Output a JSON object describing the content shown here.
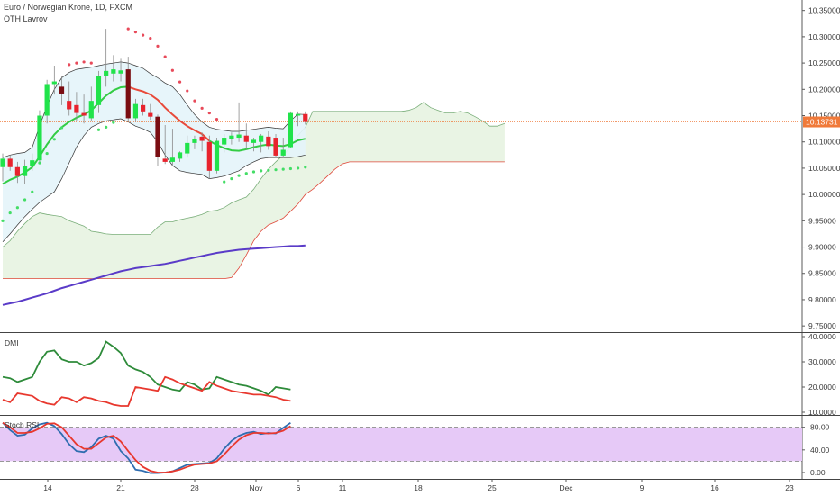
{
  "header": {
    "symbol_title": "Euro / Norwegian Krone, 1D, FXCM",
    "indicator_label": "OTH Lavrov"
  },
  "colors": {
    "up_candle": "#21e34b",
    "down_candle": "#e8232e",
    "dark_down_candle": "#7a0d12",
    "ema_line": "#33cc44",
    "red_line": "#e84a3a",
    "purple_line": "#5a3bc8",
    "band_fill": "#e4f4fa",
    "cloud_fill": "#e9f4e4",
    "psar": "#e84a5a",
    "dmi_plus": "#2e8b3a",
    "dmi_minus": "#e8382e",
    "stoch_k": "#2f6db0",
    "stoch_d": "#e8382e",
    "stoch_band": "#e6c9f7",
    "price_tag": "#f07a3a"
  },
  "chart_data": [
    {
      "type": "candlestick",
      "title": "Euro / Norwegian Krone, 1D, FXCM",
      "ylim": [
        9.74,
        10.37
      ],
      "yticks": [
        "10.35000",
        "10.30000",
        "10.25000",
        "10.20000",
        "10.15000",
        "10.10000",
        "10.05000",
        "10.00000",
        "9.95000",
        "9.90000",
        "9.85000",
        "9.80000",
        "9.75000"
      ],
      "current_price_label": "10.13731",
      "xticks": [
        "14",
        "21",
        "28",
        "Nov",
        "6",
        "11",
        "18",
        "25",
        "Dec",
        "9",
        "16",
        "23"
      ],
      "candles": [
        {
          "o": 10.052,
          "h": 10.078,
          "l": 10.025,
          "c": 10.068
        },
        {
          "o": 10.068,
          "h": 10.075,
          "l": 10.045,
          "c": 10.052
        },
        {
          "o": 10.052,
          "h": 10.062,
          "l": 10.022,
          "c": 10.035
        },
        {
          "o": 10.035,
          "h": 10.066,
          "l": 10.02,
          "c": 10.055
        },
        {
          "o": 10.055,
          "h": 10.078,
          "l": 10.045,
          "c": 10.065
        },
        {
          "o": 10.065,
          "h": 10.16,
          "l": 10.06,
          "c": 10.15
        },
        {
          "o": 10.15,
          "h": 10.218,
          "l": 10.135,
          "c": 10.21
        },
        {
          "o": 10.21,
          "h": 10.245,
          "l": 10.19,
          "c": 10.215
        },
        {
          "o": 10.205,
          "h": 10.225,
          "l": 10.17,
          "c": 10.192,
          "dark": true
        },
        {
          "o": 10.178,
          "h": 10.215,
          "l": 10.15,
          "c": 10.162
        },
        {
          "o": 10.17,
          "h": 10.195,
          "l": 10.14,
          "c": 10.155
        },
        {
          "o": 10.155,
          "h": 10.19,
          "l": 10.135,
          "c": 10.15
        },
        {
          "o": 10.145,
          "h": 10.205,
          "l": 10.14,
          "c": 10.178
        },
        {
          "o": 10.17,
          "h": 10.235,
          "l": 10.155,
          "c": 10.225
        },
        {
          "o": 10.225,
          "h": 10.315,
          "l": 10.205,
          "c": 10.235
        },
        {
          "o": 10.23,
          "h": 10.265,
          "l": 10.215,
          "c": 10.238
        },
        {
          "o": 10.23,
          "h": 10.258,
          "l": 10.215,
          "c": 10.236
        },
        {
          "o": 10.238,
          "h": 10.262,
          "l": 10.14,
          "c": 10.145,
          "dark": true
        },
        {
          "o": 10.145,
          "h": 10.182,
          "l": 10.138,
          "c": 10.172
        },
        {
          "o": 10.17,
          "h": 10.182,
          "l": 10.15,
          "c": 10.158
        },
        {
          "o": 10.155,
          "h": 10.172,
          "l": 10.142,
          "c": 10.148
        },
        {
          "o": 10.148,
          "h": 10.152,
          "l": 10.055,
          "c": 10.072,
          "dark": true
        },
        {
          "o": 10.068,
          "h": 10.132,
          "l": 10.058,
          "c": 10.062
        },
        {
          "o": 10.062,
          "h": 10.125,
          "l": 10.055,
          "c": 10.07
        },
        {
          "o": 10.068,
          "h": 10.082,
          "l": 10.062,
          "c": 10.08
        },
        {
          "o": 10.078,
          "h": 10.112,
          "l": 10.07,
          "c": 10.098
        },
        {
          "o": 10.098,
          "h": 10.112,
          "l": 10.086,
          "c": 10.105
        },
        {
          "o": 10.11,
          "h": 10.118,
          "l": 10.082,
          "c": 10.102
        },
        {
          "o": 10.1,
          "h": 10.112,
          "l": 10.03,
          "c": 10.045
        },
        {
          "o": 10.045,
          "h": 10.108,
          "l": 10.04,
          "c": 10.102
        },
        {
          "o": 10.095,
          "h": 10.115,
          "l": 10.08,
          "c": 10.108
        },
        {
          "o": 10.105,
          "h": 10.118,
          "l": 10.095,
          "c": 10.112
        },
        {
          "o": 10.108,
          "h": 10.175,
          "l": 10.1,
          "c": 10.114
        },
        {
          "o": 10.112,
          "h": 10.135,
          "l": 10.085,
          "c": 10.1
        },
        {
          "o": 10.098,
          "h": 10.108,
          "l": 10.082,
          "c": 10.104
        },
        {
          "o": 10.1,
          "h": 10.115,
          "l": 10.08,
          "c": 10.112
        },
        {
          "o": 10.11,
          "h": 10.12,
          "l": 10.085,
          "c": 10.092
        },
        {
          "o": 10.108,
          "h": 10.115,
          "l": 10.07,
          "c": 10.074
        },
        {
          "o": 10.074,
          "h": 10.108,
          "l": 10.07,
          "c": 10.085
        },
        {
          "o": 10.09,
          "h": 10.158,
          "l": 10.088,
          "c": 10.155
        },
        {
          "o": 10.15,
          "h": 10.158,
          "l": 10.13,
          "c": 10.153
        },
        {
          "o": 10.153,
          "h": 10.158,
          "l": 10.133,
          "c": 10.138
        }
      ],
      "ema": [
        10.02,
        10.028,
        10.034,
        10.042,
        10.052,
        10.072,
        10.095,
        10.114,
        10.128,
        10.138,
        10.146,
        10.152,
        10.16,
        10.174,
        10.188,
        10.198,
        10.204,
        10.205,
        10.2,
        10.196,
        10.19,
        10.18,
        10.165,
        10.152,
        10.14,
        10.13,
        10.122,
        10.115,
        10.102,
        10.094,
        10.088,
        10.084,
        10.083,
        10.086,
        10.09,
        10.093,
        10.095,
        10.093,
        10.092,
        10.096,
        10.103,
        10.106
      ],
      "band_upper": [
        10.07,
        10.075,
        10.078,
        10.08,
        10.09,
        10.13,
        10.168,
        10.2,
        10.222,
        10.232,
        10.238,
        10.24,
        10.242,
        10.245,
        10.248,
        10.25,
        10.252,
        10.25,
        10.245,
        10.24,
        10.23,
        10.222,
        10.212,
        10.205,
        10.19,
        10.17,
        10.152,
        10.138,
        10.128,
        10.124,
        10.122,
        10.12,
        10.12,
        10.122,
        10.124,
        10.126,
        10.128,
        10.126,
        10.125,
        10.14,
        10.153,
        10.152
      ],
      "band_lower": [
        9.91,
        9.925,
        9.942,
        9.958,
        9.972,
        9.985,
        9.995,
        10.005,
        10.03,
        10.06,
        10.09,
        10.112,
        10.128,
        10.135,
        10.14,
        10.142,
        10.144,
        10.138,
        10.13,
        10.125,
        10.118,
        10.1,
        10.075,
        10.055,
        10.045,
        10.042,
        10.04,
        10.038,
        10.03,
        10.032,
        10.035,
        10.04,
        10.045,
        10.055,
        10.062,
        10.068,
        10.07,
        10.07,
        10.07,
        10.07,
        10.072,
        10.075
      ],
      "cloud_upper": [
        9.9,
        9.912,
        9.93,
        9.945,
        9.958,
        9.965,
        9.962,
        9.96,
        9.958,
        9.95,
        9.945,
        9.94,
        9.93,
        9.928,
        9.925,
        9.924,
        9.924,
        9.924,
        9.924,
        9.924,
        9.924,
        9.938,
        9.948,
        9.948,
        9.952,
        9.955,
        9.958,
        9.962,
        9.968,
        9.97,
        9.975,
        9.984,
        9.99,
        9.995,
        10.01,
        10.03,
        10.048,
        10.062,
        10.075,
        10.09,
        10.112,
        10.128,
        10.158,
        10.158,
        10.158,
        10.158,
        10.158,
        10.158,
        10.158,
        10.158,
        10.158,
        10.158,
        10.158,
        10.158,
        10.158,
        10.16,
        10.165,
        10.175,
        10.165,
        10.16,
        10.155,
        10.155,
        10.158,
        10.155,
        10.148,
        10.14,
        10.13,
        10.13,
        10.135
      ],
      "cloud_lower": [
        9.84,
        9.84,
        9.84,
        9.84,
        9.84,
        9.84,
        9.84,
        9.84,
        9.84,
        9.84,
        9.84,
        9.84,
        9.84,
        9.84,
        9.84,
        9.84,
        9.84,
        9.84,
        9.84,
        9.84,
        9.84,
        9.84,
        9.84,
        9.84,
        9.84,
        9.84,
        9.84,
        9.84,
        9.84,
        9.84,
        9.84,
        9.842,
        9.86,
        9.885,
        9.912,
        9.93,
        9.942,
        9.948,
        9.955,
        9.968,
        9.982,
        10.0,
        10.01,
        10.022,
        10.035,
        10.048,
        10.058,
        10.062,
        10.062,
        10.062,
        10.062,
        10.062,
        10.062,
        10.062,
        10.062,
        10.062,
        10.062,
        10.062,
        10.062,
        10.062,
        10.062,
        10.062,
        10.062,
        10.062,
        10.062,
        10.062,
        10.062,
        10.062,
        10.062
      ],
      "purple_line": [
        9.79,
        9.793,
        9.796,
        9.8,
        9.804,
        9.808,
        9.812,
        9.817,
        9.822,
        9.826,
        9.83,
        9.834,
        9.838,
        9.842,
        9.846,
        9.85,
        9.854,
        9.857,
        9.86,
        9.862,
        9.864,
        9.866,
        9.868,
        9.871,
        9.874,
        9.877,
        9.88,
        9.883,
        9.886,
        9.889,
        9.891,
        9.893,
        9.895,
        9.896,
        9.897,
        9.898,
        9.899,
        9.9,
        9.901,
        9.902,
        9.902,
        9.903
      ],
      "psar": [
        {
          "i": 0,
          "v": 9.95
        },
        {
          "i": 1,
          "v": 9.965
        },
        {
          "i": 2,
          "v": 9.975
        },
        {
          "i": 3,
          "v": 9.99
        },
        {
          "i": 4,
          "v": 10.005
        },
        {
          "i": 5,
          "v": 10.06
        },
        {
          "i": 6,
          "v": 10.078
        },
        {
          "i": 7,
          "v": 10.105
        },
        {
          "i": 8,
          "v": 10.127
        },
        {
          "i": 9,
          "v": 10.247
        },
        {
          "i": 10,
          "v": 10.25
        },
        {
          "i": 11,
          "v": 10.252
        },
        {
          "i": 12,
          "v": 10.25
        },
        {
          "i": 13,
          "v": 10.123
        },
        {
          "i": 14,
          "v": 10.128
        },
        {
          "i": 15,
          "v": 10.137
        },
        {
          "i": 17,
          "v": 10.315
        },
        {
          "i": 18,
          "v": 10.309
        },
        {
          "i": 19,
          "v": 10.303
        },
        {
          "i": 20,
          "v": 10.297
        },
        {
          "i": 21,
          "v": 10.282
        },
        {
          "i": 22,
          "v": 10.262
        },
        {
          "i": 23,
          "v": 10.236
        },
        {
          "i": 24,
          "v": 10.214
        },
        {
          "i": 25,
          "v": 10.197
        },
        {
          "i": 26,
          "v": 10.178
        },
        {
          "i": 27,
          "v": 10.164
        },
        {
          "i": 28,
          "v": 10.155
        },
        {
          "i": 29,
          "v": 10.143
        },
        {
          "i": 30,
          "v": 10.024
        },
        {
          "i": 31,
          "v": 10.03
        },
        {
          "i": 32,
          "v": 10.036
        },
        {
          "i": 33,
          "v": 10.04
        },
        {
          "i": 34,
          "v": 10.043
        },
        {
          "i": 35,
          "v": 10.045
        },
        {
          "i": 36,
          "v": 10.046
        },
        {
          "i": 37,
          "v": 10.047
        },
        {
          "i": 38,
          "v": 10.048
        },
        {
          "i": 39,
          "v": 10.049
        },
        {
          "i": 40,
          "v": 10.05
        },
        {
          "i": 41,
          "v": 10.052
        }
      ]
    },
    {
      "type": "line",
      "title": "DMI",
      "ylim": [
        10,
        40
      ],
      "yticks": [
        "40.0000",
        "30.0000",
        "20.0000",
        "10.0000"
      ],
      "series": [
        {
          "values": [
            24,
            23.5,
            22,
            23,
            24,
            30,
            34,
            34.5,
            31,
            30,
            30,
            28.5,
            29.5,
            31.5,
            38,
            36,
            33.5,
            28.5,
            27,
            26,
            24,
            21,
            20,
            19,
            18.5,
            22,
            21,
            19,
            19.5,
            24,
            23,
            22,
            21,
            20.5,
            19.5,
            18.5,
            17,
            20,
            19.5,
            19
          ]
        },
        {
          "values": [
            15,
            14,
            17.5,
            17,
            16.5,
            14.5,
            13.5,
            13,
            16,
            15.5,
            14,
            16,
            15.5,
            14.5,
            14,
            13,
            12.5,
            12.5,
            20,
            19.5,
            19,
            18.5,
            24,
            23,
            21.5,
            20.5,
            19.5,
            18.5,
            22,
            20.5,
            19.5,
            18.5,
            18,
            17.5,
            17,
            17,
            16.5,
            16,
            15,
            14.5
          ]
        }
      ]
    },
    {
      "type": "line",
      "title": "Stoch RSI",
      "ylim": [
        -8,
        97
      ],
      "yticks": [
        "80.00",
        "40.00",
        "0.00"
      ],
      "band": [
        20,
        80
      ],
      "series": [
        {
          "values": [
            88,
            75,
            65,
            67,
            78,
            85,
            88,
            82,
            68,
            50,
            38,
            36,
            45,
            60,
            65,
            60,
            38,
            25,
            5,
            3,
            -1,
            -1,
            0,
            2,
            8,
            14,
            15,
            16,
            17,
            25,
            42,
            56,
            65,
            70,
            72,
            68,
            70,
            69,
            79,
            88
          ]
        },
        {
          "values": [
            88,
            80,
            70,
            70,
            72,
            78,
            86,
            87,
            80,
            65,
            50,
            42,
            42,
            52,
            62,
            65,
            55,
            38,
            22,
            10,
            3,
            0,
            0,
            2,
            5,
            10,
            14,
            15,
            16,
            20,
            32,
            46,
            58,
            66,
            70,
            70,
            69,
            70,
            74,
            82
          ]
        }
      ]
    }
  ]
}
